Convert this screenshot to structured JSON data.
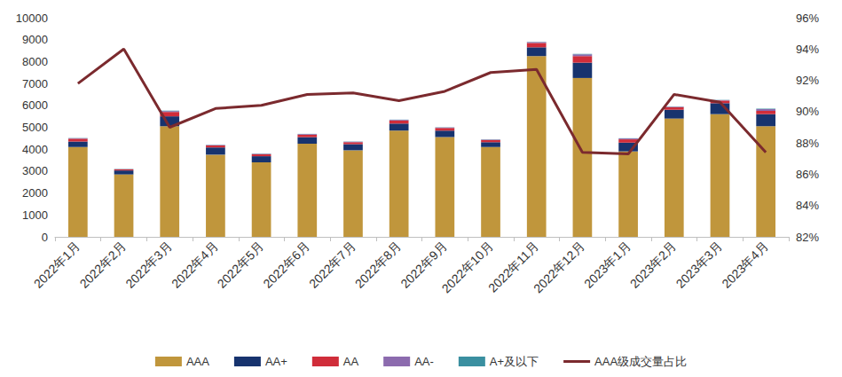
{
  "chart_data": {
    "type": "bar",
    "stacked": true,
    "grid": false,
    "legend": "bottom",
    "categories": [
      "2022年1月",
      "2022年2月",
      "2022年3月",
      "2022年4月",
      "2022年5月",
      "2022年6月",
      "2022年7月",
      "2022年8月",
      "2022年9月",
      "2022年10月",
      "2022年11月",
      "2022年12月",
      "2023年1月",
      "2023年2月",
      "2023年3月",
      "2023年4月"
    ],
    "ylim": [
      0,
      10000
    ],
    "yticks": [
      0,
      1000,
      2000,
      3000,
      4000,
      5000,
      6000,
      7000,
      8000,
      9000,
      10000
    ],
    "y2lim": [
      82,
      96
    ],
    "y2ticks": [
      {
        "value": 82,
        "label": "82%"
      },
      {
        "value": 84,
        "label": "84%"
      },
      {
        "value": 86,
        "label": "86%"
      },
      {
        "value": 88,
        "label": "88%"
      },
      {
        "value": 90,
        "label": "90%"
      },
      {
        "value": 92,
        "label": "92%"
      },
      {
        "value": 94,
        "label": "94%"
      },
      {
        "value": 96,
        "label": "96%"
      }
    ],
    "series": [
      {
        "name": "AAA",
        "type": "bar",
        "color": "#c0963c",
        "values": [
          4100,
          2850,
          5050,
          3750,
          3400,
          4250,
          3950,
          4850,
          4550,
          4100,
          8250,
          7250,
          3900,
          5400,
          5600,
          5050
        ]
      },
      {
        "name": "AA+",
        "type": "bar",
        "color": "#17336e",
        "values": [
          250,
          180,
          450,
          330,
          280,
          300,
          280,
          320,
          300,
          220,
          400,
          700,
          400,
          400,
          500,
          550
        ]
      },
      {
        "name": "AA",
        "type": "bar",
        "color": "#d02d3a",
        "values": [
          130,
          50,
          200,
          90,
          90,
          110,
          90,
          140,
          120,
          100,
          200,
          300,
          150,
          120,
          120,
          150
        ]
      },
      {
        "name": "AA-",
        "type": "bar",
        "color": "#8c6bae",
        "values": [
          20,
          10,
          40,
          20,
          20,
          30,
          20,
          30,
          20,
          20,
          40,
          80,
          40,
          20,
          20,
          80
        ]
      },
      {
        "name": "A+及以下",
        "type": "bar",
        "color": "#3a8fa0",
        "values": [
          10,
          10,
          20,
          10,
          10,
          10,
          10,
          10,
          10,
          10,
          10,
          20,
          10,
          10,
          10,
          20
        ]
      },
      {
        "name": "AAA级成交量占比",
        "type": "line",
        "axis": "y2",
        "color": "#7b2a2e",
        "values": [
          91.8,
          94.0,
          89.0,
          90.2,
          90.4,
          91.1,
          91.2,
          90.7,
          91.3,
          92.5,
          92.7,
          87.4,
          87.3,
          91.1,
          90.6,
          87.4
        ]
      }
    ]
  }
}
